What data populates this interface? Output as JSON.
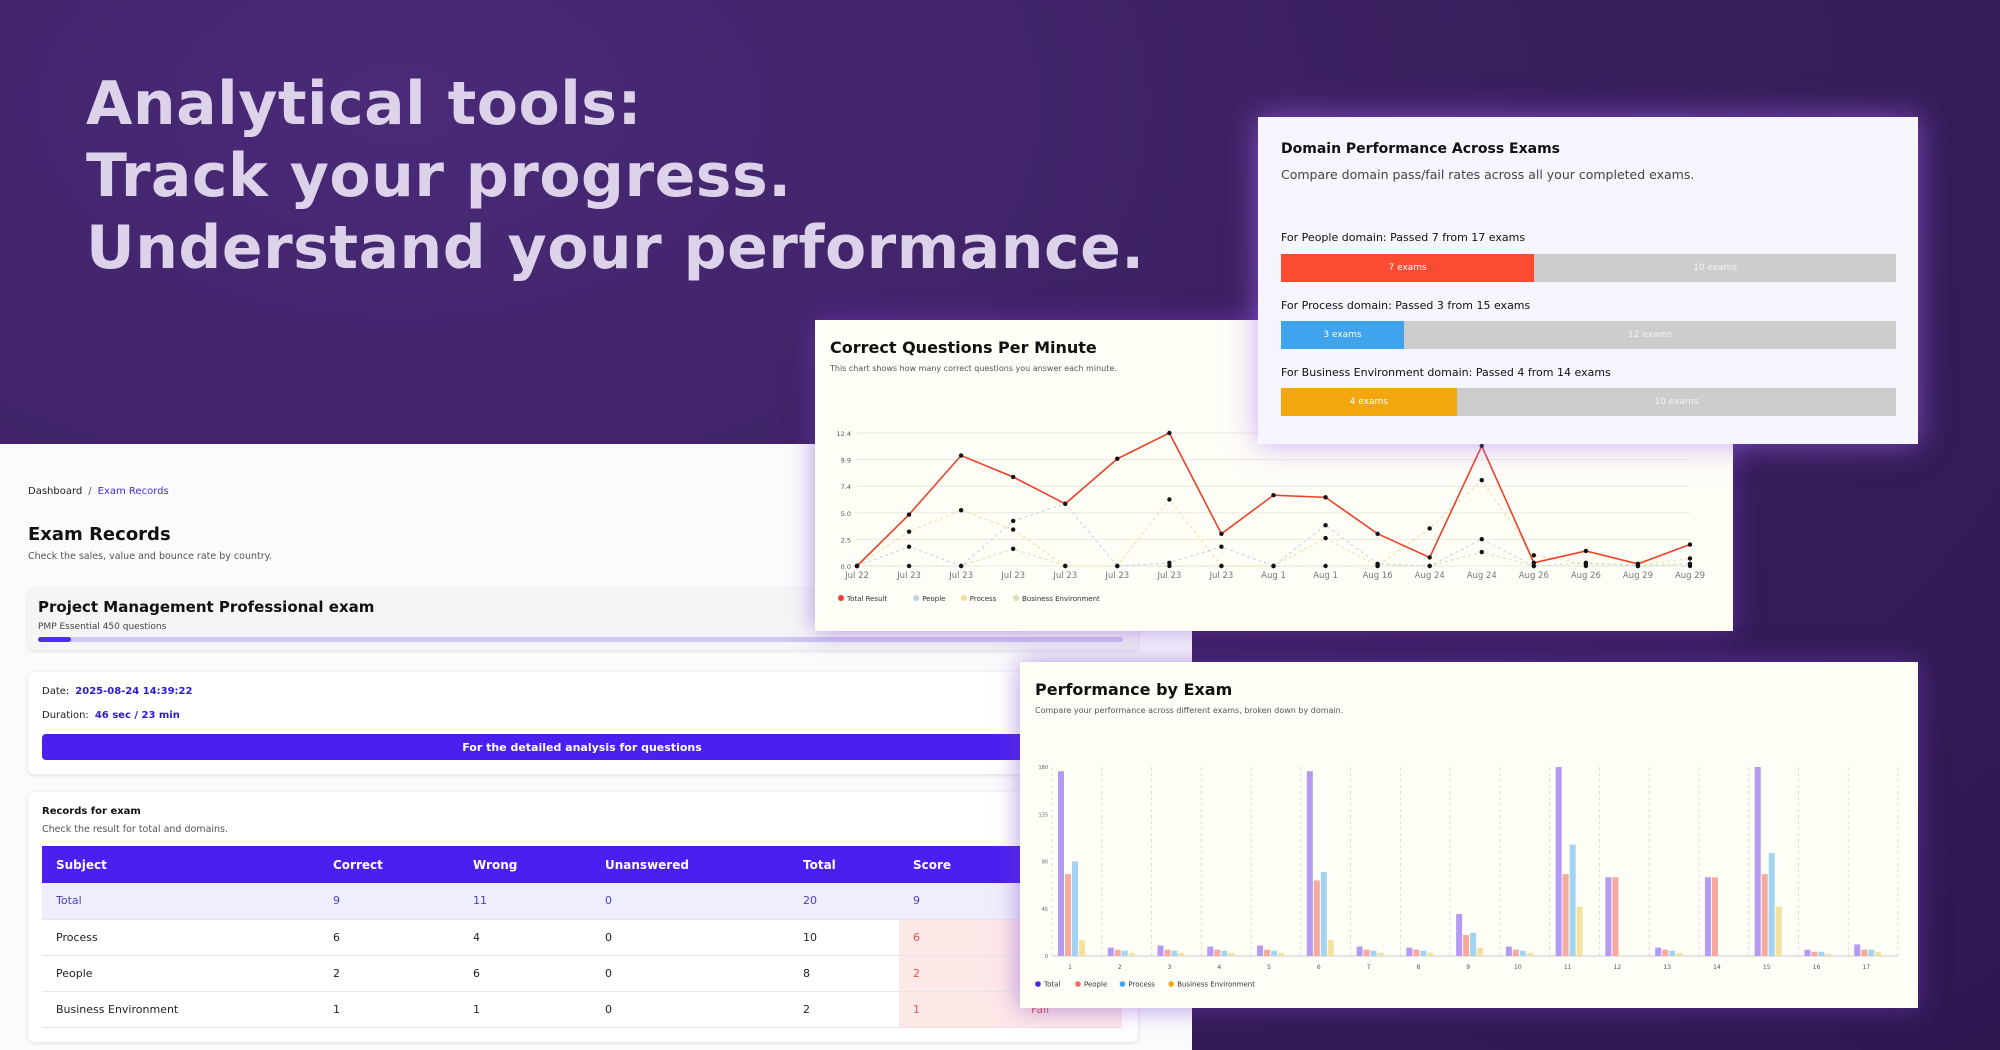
{
  "headline": [
    "Analytical tools:",
    "Track your progress.",
    "Understand your performance."
  ],
  "breadcrumb": {
    "home": "Dashboard",
    "sep": "/",
    "current": "Exam Records"
  },
  "records": {
    "title": "Exam Records",
    "subtitle": "Check the sales, value and bounce rate by country.",
    "exam": {
      "name": "Project Management Professional exam",
      "subtitle": "PMP Essential 450 questions",
      "progress": 0.03
    },
    "date_label": "Date:",
    "date_value": "2025-08-24 14:39:22",
    "duration_label": "Duration:",
    "duration_value": "46 sec / 23 min",
    "analysis_button": "For the detailed analysis for questions",
    "table_title": "Records for exam",
    "table_subtitle": "Check the result for total and domains.",
    "columns": [
      "Subject",
      "Correct",
      "Wrong",
      "Unanswered",
      "Total",
      "Score",
      ""
    ],
    "rows": [
      {
        "subject": "Total",
        "correct": "9",
        "wrong": "11",
        "unanswered": "0",
        "total": "20",
        "score": "9",
        "result": ""
      },
      {
        "subject": "Process",
        "correct": "6",
        "wrong": "4",
        "unanswered": "0",
        "total": "10",
        "score": "6",
        "result": ""
      },
      {
        "subject": "People",
        "correct": "2",
        "wrong": "6",
        "unanswered": "0",
        "total": "8",
        "score": "2",
        "result": ""
      },
      {
        "subject": "Business Environment",
        "correct": "1",
        "wrong": "1",
        "unanswered": "0",
        "total": "2",
        "score": "1",
        "result": "Fail"
      }
    ]
  },
  "domain_performance": {
    "title": "Domain Performance Across Exams",
    "subtitle": "Compare domain pass/fail rates across all your completed exams.",
    "domains": [
      {
        "label": "For People domain: Passed 7 from 17 exams",
        "passed": 7,
        "failed": 10,
        "pass_text": "7 exams",
        "fail_text": "10 exams",
        "color": "#fd4a32"
      },
      {
        "label": "For Process domain: Passed 3 from 15 exams",
        "passed": 3,
        "failed": 12,
        "pass_text": "3 exams",
        "fail_text": "12 exams",
        "color": "#3fa3ee"
      },
      {
        "label": "For Business Environment domain: Passed 4 from 14 exams",
        "passed": 4,
        "failed": 10,
        "pass_text": "4 exams",
        "fail_text": "10 exams",
        "color": "#f2a70f"
      }
    ]
  },
  "cqpm": {
    "title": "Correct Questions Per Minute",
    "subtitle": "This chart shows how many correct questions you answer each minute."
  },
  "perf": {
    "title": "Performance by Exam",
    "subtitle": "Compare your performance across different exams, broken down by domain."
  },
  "chart_data": [
    {
      "type": "line",
      "title": "Correct Questions Per Minute",
      "x": [
        "Jul 22",
        "Jul 23",
        "Jul 23",
        "Jul 23",
        "Jul 23",
        "Jul 23",
        "Jul 23",
        "Jul 23",
        "Aug 1",
        "Aug 1",
        "Aug 16",
        "Aug 24",
        "Aug 24",
        "Aug 26",
        "Aug 26",
        "Aug 29",
        "Aug 29"
      ],
      "ylim": [
        0,
        12.4
      ],
      "yticks": [
        "0.0",
        "2.5",
        "5.0",
        "7.4",
        "9.9",
        "12.4"
      ],
      "legend_position": "bottom-left",
      "series": [
        {
          "name": "Total Result",
          "color": "#e8432a",
          "values": [
            0,
            4.8,
            10.3,
            8.3,
            5.8,
            10.0,
            12.4,
            3.0,
            6.6,
            6.4,
            3.0,
            0.8,
            11.2,
            0.3,
            1.4,
            0.2,
            2.0
          ]
        },
        {
          "name": "People",
          "color": "#b8d6e8",
          "values": [
            0,
            1.8,
            0,
            4.2,
            5.8,
            0,
            0.3,
            1.8,
            0,
            3.8,
            0.2,
            0,
            2.5,
            0,
            0.3,
            0,
            0.2
          ]
        },
        {
          "name": "Process",
          "color": "#f0df97",
          "values": [
            0,
            3.2,
            5.2,
            3.4,
            0,
            0,
            6.2,
            0,
            0,
            2.6,
            0,
            3.5,
            8.0,
            1.0,
            0.2,
            0.1,
            0.7
          ]
        },
        {
          "name": "Business Environment",
          "color": "#d4e2b0",
          "values": [
            0,
            0,
            0,
            1.6,
            0,
            0,
            0,
            0,
            0,
            0,
            0,
            0,
            1.3,
            0,
            0,
            0,
            0
          ]
        }
      ]
    },
    {
      "type": "bar",
      "title": "Performance by Exam",
      "categories": [
        "1",
        "2",
        "3",
        "4",
        "5",
        "6",
        "7",
        "8",
        "9",
        "10",
        "11",
        "12",
        "13",
        "14",
        "15",
        "16",
        "17"
      ],
      "ylim": [
        0,
        180
      ],
      "yticks": [
        "0",
        "45",
        "90",
        "135",
        "180"
      ],
      "legend_position": "bottom-left",
      "series": [
        {
          "name": "Total",
          "color": "#b59af5",
          "values": [
            176,
            8,
            10,
            9,
            10,
            176,
            9,
            8,
            40,
            9,
            180,
            75,
            8,
            75,
            180,
            6,
            11
          ]
        },
        {
          "name": "People",
          "color": "#f7a99e",
          "values": [
            78,
            6,
            6,
            6,
            6,
            72,
            6,
            6,
            20,
            6,
            78,
            75,
            6,
            75,
            78,
            4,
            6
          ]
        },
        {
          "name": "Process",
          "color": "#a3d3f2",
          "values": [
            90,
            5,
            5,
            5,
            5,
            80,
            5,
            5,
            22,
            5,
            106,
            0,
            5,
            0,
            98,
            4,
            6
          ]
        },
        {
          "name": "Business Environment",
          "color": "#f1e39f",
          "values": [
            15,
            3,
            3,
            3,
            3,
            15,
            3,
            3,
            8,
            3,
            47,
            0,
            3,
            0,
            47,
            2,
            4
          ]
        }
      ]
    }
  ]
}
